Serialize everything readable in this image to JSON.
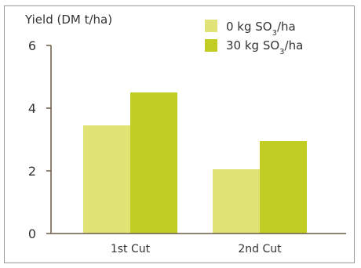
{
  "chart_data": {
    "type": "bar",
    "ylabel": "Yield (DM t/ha)",
    "xlabel": "",
    "ylim": [
      0,
      6
    ],
    "yticks": [
      0,
      2,
      4,
      6
    ],
    "categories": [
      "1st Cut",
      "2nd Cut"
    ],
    "series": [
      {
        "name": "0 kg SO₃/ha",
        "values": [
          3.45,
          2.05
        ],
        "color": "#e1e377"
      },
      {
        "name": "30 kg SO₃/ha",
        "values": [
          4.5,
          2.95
        ],
        "color": "#c1cd23"
      }
    ],
    "legend_position": "top-right",
    "grid": false
  },
  "colors": {
    "frame_border": "#9a9a9a",
    "axis": "#6b5a45"
  }
}
